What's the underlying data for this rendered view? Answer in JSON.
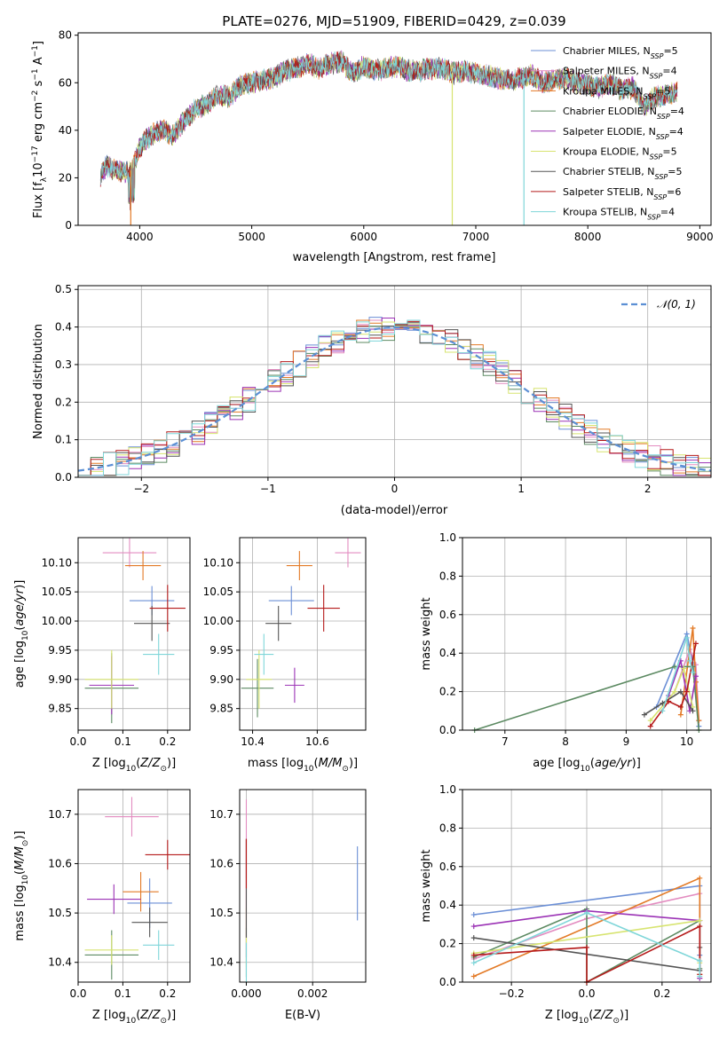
{
  "figure_title": "PLATE=0276, MJD=51909, FIBERID=0429, z=0.039",
  "colors": [
    "#6b8fd6",
    "#e38cc0",
    "#e37a26",
    "#5c8a62",
    "#9b32b5",
    "#d7e470",
    "#555555",
    "#b51a1a",
    "#7fd6d9"
  ],
  "legend_models": [
    {
      "base": "Chabrier MILES, N",
      "n": "=5"
    },
    {
      "base": "Salpeter MILES, N",
      "n": "=4"
    },
    {
      "base": "Kroupa MILES, N",
      "n": "=5"
    },
    {
      "base": "Chabrier ELODIE, N",
      "n": "=4"
    },
    {
      "base": "Salpeter ELODIE, N",
      "n": "=4"
    },
    {
      "base": "Kroupa ELODIE, N",
      "n": "=5"
    },
    {
      "base": "Chabrier STELIB, N",
      "n": "=5"
    },
    {
      "base": "Salpeter STELIB, N",
      "n": "=6"
    },
    {
      "base": "Kroupa STELIB, N",
      "n": "=4"
    }
  ],
  "legend_sub": "SSP",
  "normal_legend": "𝒩(0, 1)",
  "chart_data": [
    {
      "id": "spectrum",
      "type": "line",
      "xlabel": "wavelength [Angstrom, rest frame]",
      "ylabel": "Flux [f_λ 10^-17 erg cm^-2 s^-1 A^-1]",
      "xlim": [
        3450,
        9100
      ],
      "ylim": [
        0,
        81
      ],
      "xticks": [
        "4000",
        "5000",
        "6000",
        "7000",
        "8000",
        "9000"
      ],
      "yticks": [
        "0",
        "20",
        "40",
        "60",
        "80"
      ],
      "grid": false,
      "legend": "top-right",
      "x_range": [
        3650,
        8800
      ],
      "envelope": [
        [
          3650,
          21
        ],
        [
          3700,
          25
        ],
        [
          3800,
          23
        ],
        [
          3900,
          22
        ],
        [
          3950,
          25
        ],
        [
          4000,
          33
        ],
        [
          4100,
          38
        ],
        [
          4200,
          40
        ],
        [
          4300,
          38
        ],
        [
          4400,
          44
        ],
        [
          4500,
          49
        ],
        [
          4600,
          51
        ],
        [
          4700,
          55
        ],
        [
          4800,
          54
        ],
        [
          4900,
          59
        ],
        [
          5000,
          60
        ],
        [
          5100,
          61
        ],
        [
          5200,
          62
        ],
        [
          5300,
          65
        ],
        [
          5400,
          66
        ],
        [
          5500,
          68
        ],
        [
          5600,
          66
        ],
        [
          5700,
          68
        ],
        [
          5800,
          69
        ],
        [
          5900,
          64
        ],
        [
          6000,
          67
        ],
        [
          6100,
          65
        ],
        [
          6200,
          66
        ],
        [
          6300,
          67
        ],
        [
          6400,
          65
        ],
        [
          6500,
          65
        ],
        [
          6600,
          66
        ],
        [
          6700,
          66
        ],
        [
          6800,
          64
        ],
        [
          6900,
          65
        ],
        [
          7000,
          64
        ],
        [
          7100,
          63
        ],
        [
          7200,
          62
        ],
        [
          7300,
          61
        ],
        [
          7400,
          62
        ],
        [
          7500,
          63
        ],
        [
          7600,
          60
        ],
        [
          7700,
          61
        ],
        [
          7800,
          62
        ],
        [
          7900,
          60
        ],
        [
          8000,
          59
        ],
        [
          8100,
          58
        ],
        [
          8200,
          60
        ],
        [
          8300,
          57
        ],
        [
          8400,
          58
        ],
        [
          8500,
          50
        ],
        [
          8600,
          54
        ],
        [
          8700,
          55
        ],
        [
          8800,
          56
        ]
      ],
      "dropouts": [
        [
          3920,
          3
        ],
        [
          6790,
          5
        ],
        [
          7430,
          2
        ]
      ]
    },
    {
      "id": "residuals",
      "type": "bar",
      "xlabel": "(data-model)/error",
      "ylabel": "Normed distribution",
      "xlim": [
        -2.5,
        2.5
      ],
      "ylim": [
        0,
        0.51
      ],
      "xticks": [
        "−2",
        "−1",
        "0",
        "1",
        "2"
      ],
      "yticks": [
        "0.0",
        "0.1",
        "0.2",
        "0.3",
        "0.4",
        "0.5"
      ],
      "grid": true,
      "legend": "top-right",
      "bin_width": 0.1,
      "normal": {
        "mean": 0,
        "sigma": 1
      }
    },
    {
      "id": "age_vs_Z",
      "type": "scatter",
      "xlabel": "Z [log10(Z/Z⊙)]",
      "ylabel": "age [log10(age/yr)]",
      "xlim": [
        0.0,
        0.25
      ],
      "ylim": [
        9.813,
        10.143
      ],
      "xticks": [
        "0.0",
        "0.1",
        "0.2"
      ],
      "yticks": [
        "9.85",
        "9.90",
        "9.95",
        "10.00",
        "10.05",
        "10.10"
      ],
      "grid": true,
      "points": [
        {
          "x": 0.165,
          "y": 10.035,
          "xe": 0.05,
          "ye": 0.025
        },
        {
          "x": 0.115,
          "y": 10.117,
          "xe": 0.06,
          "ye": 0.025
        },
        {
          "x": 0.145,
          "y": 10.095,
          "xe": 0.04,
          "ye": 0.025
        },
        {
          "x": 0.075,
          "y": 9.885,
          "xe": 0.06,
          "ye": 0.06
        },
        {
          "x": 0.075,
          "y": 9.89,
          "xe": 0.05,
          "ye": 0.05
        },
        {
          "x": 0.075,
          "y": 9.9,
          "xe": 0.06,
          "ye": 0.05
        },
        {
          "x": 0.165,
          "y": 9.996,
          "xe": 0.04,
          "ye": 0.03
        },
        {
          "x": 0.2,
          "y": 10.022,
          "xe": 0.04,
          "ye": 0.04
        },
        {
          "x": 0.18,
          "y": 9.943,
          "xe": 0.035,
          "ye": 0.035
        }
      ]
    },
    {
      "id": "age_vs_mass",
      "type": "scatter",
      "xlabel": "mass [log10(M/M⊙)]",
      "ylabel": "",
      "xlim": [
        10.36,
        10.75
      ],
      "ylim": [
        9.813,
        10.143
      ],
      "xticks": [
        "10.4",
        "10.6"
      ],
      "yticks": [
        "9.85",
        "9.90",
        "9.95",
        "10.00",
        "10.05",
        "10.10"
      ],
      "grid": true,
      "points": [
        {
          "x": 10.52,
          "y": 10.035,
          "xe": 0.07,
          "ye": 0.025
        },
        {
          "x": 10.695,
          "y": 10.117,
          "xe": 0.04,
          "ye": 0.025
        },
        {
          "x": 10.545,
          "y": 10.095,
          "xe": 0.04,
          "ye": 0.025
        },
        {
          "x": 10.415,
          "y": 9.885,
          "xe": 0.05,
          "ye": 0.05
        },
        {
          "x": 10.53,
          "y": 9.89,
          "xe": 0.03,
          "ye": 0.03
        },
        {
          "x": 10.42,
          "y": 9.9,
          "xe": 0.04,
          "ye": 0.05
        },
        {
          "x": 10.48,
          "y": 9.996,
          "xe": 0.04,
          "ye": 0.03
        },
        {
          "x": 10.62,
          "y": 10.022,
          "xe": 0.05,
          "ye": 0.04
        },
        {
          "x": 10.435,
          "y": 9.943,
          "xe": 0.03,
          "ye": 0.035
        }
      ]
    },
    {
      "id": "weight_vs_age",
      "type": "line",
      "xlabel": "age [log10(age/yr)]",
      "ylabel": "mass weight",
      "xlim": [
        6.3,
        10.4
      ],
      "ylim": [
        0,
        1.0
      ],
      "xticks": [
        "7",
        "8",
        "9",
        "10"
      ],
      "yticks": [
        "0.0",
        "0.2",
        "0.4",
        "0.6",
        "0.8",
        "1.0"
      ],
      "grid": true,
      "series": [
        {
          "points": [
            [
              9.5,
              0.12
            ],
            [
              10.0,
              0.5
            ],
            [
              10.1,
              0.35
            ],
            [
              10.2,
              0.02
            ]
          ]
        },
        {
          "points": [
            [
              9.8,
              0.2
            ],
            [
              10.05,
              0.42
            ],
            [
              10.15,
              0.34
            ],
            [
              10.2,
              0.05
            ]
          ]
        },
        {
          "points": [
            [
              9.9,
              0.08
            ],
            [
              10.1,
              0.53
            ],
            [
              10.15,
              0.25
            ],
            [
              10.2,
              0.05
            ]
          ]
        },
        {
          "points": [
            [
              6.5,
              0.0
            ],
            [
              9.8,
              0.33
            ],
            [
              10.1,
              0.33
            ],
            [
              10.2,
              0.0
            ]
          ]
        },
        {
          "points": [
            [
              9.7,
              0.18
            ],
            [
              9.9,
              0.36
            ],
            [
              10.05,
              0.1
            ],
            [
              10.15,
              0.28
            ]
          ]
        },
        {
          "points": [
            [
              9.4,
              0.05
            ],
            [
              9.8,
              0.2
            ],
            [
              9.95,
              0.32
            ],
            [
              10.1,
              0.12
            ]
          ]
        },
        {
          "points": [
            [
              9.3,
              0.08
            ],
            [
              9.6,
              0.14
            ],
            [
              9.9,
              0.2
            ],
            [
              10.1,
              0.1
            ]
          ]
        },
        {
          "points": [
            [
              9.4,
              0.02
            ],
            [
              9.7,
              0.15
            ],
            [
              9.9,
              0.12
            ],
            [
              10.0,
              0.2
            ],
            [
              10.15,
              0.45
            ]
          ]
        },
        {
          "points": [
            [
              9.6,
              0.1
            ],
            [
              10.0,
              0.48
            ],
            [
              10.05,
              0.36
            ],
            [
              10.1,
              0.3
            ]
          ]
        }
      ]
    },
    {
      "id": "mass_vs_Z",
      "type": "scatter",
      "xlabel": "Z [log10(Z/Z⊙)]",
      "ylabel": "mass [log10(M/M⊙)]",
      "xlim": [
        0.0,
        0.25
      ],
      "ylim": [
        10.36,
        10.75
      ],
      "xticks": [
        "0.0",
        "0.1",
        "0.2"
      ],
      "yticks": [
        "10.4",
        "10.5",
        "10.6",
        "10.7"
      ],
      "grid": true,
      "points": [
        {
          "x": 0.16,
          "y": 10.52,
          "xe": 0.05,
          "ye": 0.05
        },
        {
          "x": 0.12,
          "y": 10.695,
          "xe": 0.06,
          "ye": 0.04
        },
        {
          "x": 0.14,
          "y": 10.543,
          "xe": 0.04,
          "ye": 0.04
        },
        {
          "x": 0.075,
          "y": 10.415,
          "xe": 0.06,
          "ye": 0.05
        },
        {
          "x": 0.08,
          "y": 10.528,
          "xe": 0.06,
          "ye": 0.03
        },
        {
          "x": 0.075,
          "y": 10.425,
          "xe": 0.06,
          "ye": 0.03
        },
        {
          "x": 0.16,
          "y": 10.481,
          "xe": 0.04,
          "ye": 0.03
        },
        {
          "x": 0.2,
          "y": 10.618,
          "xe": 0.05,
          "ye": 0.03
        },
        {
          "x": 0.18,
          "y": 10.435,
          "xe": 0.035,
          "ye": 0.03
        }
      ]
    },
    {
      "id": "mass_vs_ebv",
      "type": "scatter",
      "xlabel": "E(B-V)",
      "ylabel": "",
      "xlim": [
        -0.0002,
        0.0036
      ],
      "ylim": [
        10.36,
        10.75
      ],
      "xticks": [
        "0.000",
        "0.002"
      ],
      "yticks": [
        "10.4",
        "10.5",
        "10.6",
        "10.7"
      ],
      "grid": true,
      "points": [
        {
          "x": 0.00335,
          "y": 10.56,
          "ye": 0.075
        },
        {
          "x": 0.0,
          "y": 10.65,
          "ye": 0.08
        },
        {
          "x": 0.0,
          "y": 10.55,
          "ye": 0.1
        },
        {
          "x": 0.0,
          "y": 10.42,
          "ye": 0.05
        },
        {
          "x": 0.0,
          "y": 10.53,
          "ye": 0.12
        },
        {
          "x": 0.0,
          "y": 10.45,
          "ye": 0.06
        },
        {
          "x": 0.0,
          "y": 10.55,
          "ye": 0.1
        },
        {
          "x": 0.0,
          "y": 10.6,
          "ye": 0.05
        },
        {
          "x": 0.0,
          "y": 10.4,
          "ye": 0.04
        }
      ]
    },
    {
      "id": "weight_vs_Z",
      "type": "line",
      "xlabel": "Z [log10(Z/Z⊙)]",
      "ylabel": "mass weight",
      "xlim": [
        -0.33,
        0.33
      ],
      "ylim": [
        0,
        1.0
      ],
      "xticks": [
        "−0.2",
        "0.0",
        "0.2"
      ],
      "yticks": [
        "0.0",
        "0.2",
        "0.4",
        "0.6",
        "0.8",
        "1.0"
      ],
      "grid": true,
      "series": [
        {
          "points": [
            [
              -0.3,
              0.35
            ],
            [
              0.3,
              0.5
            ],
            [
              0.3,
              0.14
            ]
          ]
        },
        {
          "points": [
            [
              -0.3,
              0.12
            ],
            [
              0.0,
              0.33
            ],
            [
              0.3,
              0.46
            ],
            [
              0.3,
              0.02
            ]
          ]
        },
        {
          "points": [
            [
              -0.3,
              0.03
            ],
            [
              0.3,
              0.54
            ],
            [
              0.3,
              0.04
            ]
          ]
        },
        {
          "points": [
            [
              -0.3,
              0.13
            ],
            [
              0.0,
              0.38
            ],
            [
              0.0,
              0.0
            ],
            [
              0.3,
              0.32
            ],
            [
              0.3,
              0.07
            ]
          ]
        },
        {
          "points": [
            [
              -0.3,
              0.29
            ],
            [
              0.0,
              0.37
            ],
            [
              0.3,
              0.32
            ],
            [
              0.3,
              0.02
            ]
          ]
        },
        {
          "points": [
            [
              -0.3,
              0.15
            ],
            [
              0.3,
              0.32
            ],
            [
              0.3,
              0.1
            ]
          ]
        },
        {
          "points": [
            [
              -0.3,
              0.23
            ],
            [
              0.3,
              0.06
            ],
            [
              0.3,
              0.18
            ]
          ]
        },
        {
          "points": [
            [
              -0.3,
              0.14
            ],
            [
              0.0,
              0.18
            ],
            [
              0.0,
              0.0
            ],
            [
              0.3,
              0.29
            ],
            [
              0.3,
              0.04
            ]
          ]
        },
        {
          "points": [
            [
              -0.3,
              0.1
            ],
            [
              0.0,
              0.36
            ],
            [
              0.3,
              0.11
            ],
            [
              0.3,
              0.03
            ]
          ]
        }
      ]
    }
  ]
}
